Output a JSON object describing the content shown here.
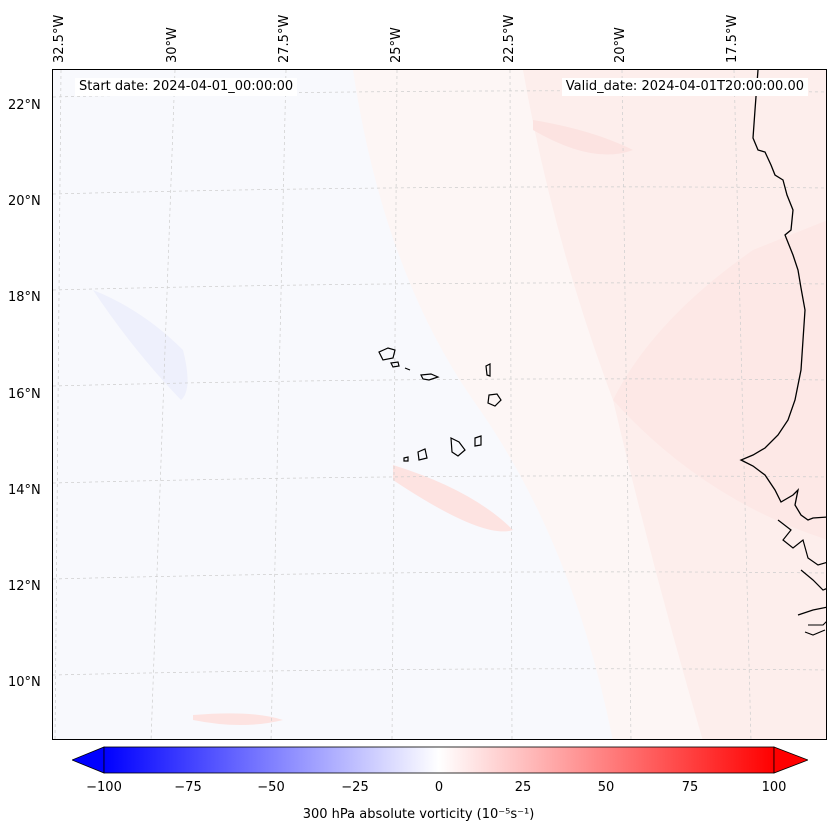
{
  "map": {
    "start_date": "Start date: 2024-04-01_00:00:00",
    "valid_date": "Valid_date: 2024-04-01T20:00:00.00",
    "lon_labels": [
      "32.5°W",
      "30°W",
      "27.5°W",
      "25°W",
      "22.5°W",
      "20°W",
      "17.5°W"
    ],
    "lat_labels": [
      "22°N",
      "20°N",
      "18°N",
      "16°N",
      "14°N",
      "12°N",
      "10°N"
    ],
    "gridlines": true
  },
  "colorbar": {
    "ticks": [
      "−100",
      "−75",
      "−50",
      "−25",
      "0",
      "25",
      "50",
      "75",
      "100"
    ],
    "min": -100,
    "max": 100,
    "label": "300 hPa absolute vorticity (10⁻⁵s⁻¹)",
    "low_color": "#0000ff",
    "mid_color": "#ffffff",
    "high_color": "#ff0000"
  }
}
